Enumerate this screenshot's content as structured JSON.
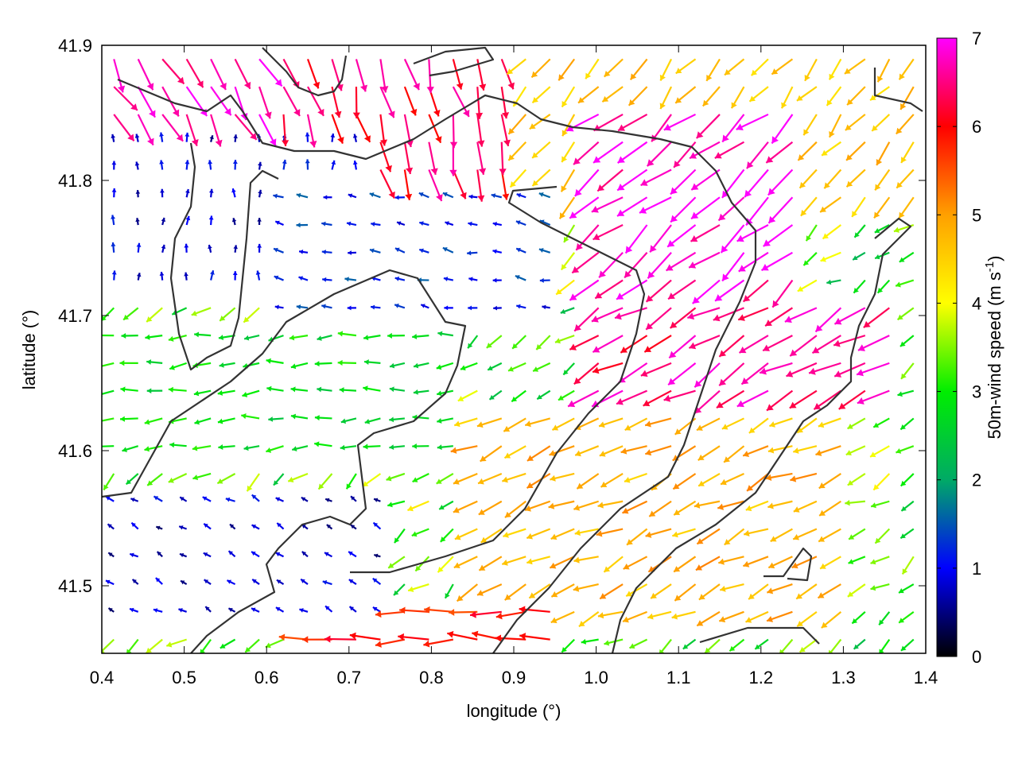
{
  "chart_data": {
    "type": "vector-field",
    "xlabel": "longitude (°)",
    "ylabel": "latitude (°)",
    "xlim": [
      0.4,
      1.4
    ],
    "ylim": [
      41.45,
      41.9
    ],
    "xticks": [
      {
        "v": 0.4,
        "label": "0.4"
      },
      {
        "v": 0.5,
        "label": "0.5"
      },
      {
        "v": 0.6,
        "label": "0.6"
      },
      {
        "v": 0.7,
        "label": "0.7"
      },
      {
        "v": 0.8,
        "label": "0.8"
      },
      {
        "v": 0.9,
        "label": "0.9"
      },
      {
        "v": 1.0,
        "label": "1.0"
      },
      {
        "v": 1.1,
        "label": "1.1"
      },
      {
        "v": 1.2,
        "label": "1.2"
      },
      {
        "v": 1.3,
        "label": "1.3"
      },
      {
        "v": 1.4,
        "label": "1.4"
      }
    ],
    "yticks": [
      {
        "v": 41.5,
        "label": "41.5"
      },
      {
        "v": 41.6,
        "label": "41.6"
      },
      {
        "v": 41.7,
        "label": "41.7"
      },
      {
        "v": 41.8,
        "label": "41.8"
      },
      {
        "v": 41.9,
        "label": "41.9"
      }
    ],
    "colorbar": {
      "label_main": "50m-wind speed (m s",
      "label_sup": "-1",
      "label_end": ")",
      "range": [
        0,
        7
      ],
      "ticks": [
        {
          "v": 0,
          "label": "0"
        },
        {
          "v": 1,
          "label": "1"
        },
        {
          "v": 2,
          "label": "2"
        },
        {
          "v": 3,
          "label": "3"
        },
        {
          "v": 4,
          "label": "4"
        },
        {
          "v": 5,
          "label": "5"
        },
        {
          "v": 6,
          "label": "6"
        },
        {
          "v": 7,
          "label": "7"
        }
      ],
      "palette": [
        "#000000",
        "#0000ff",
        "#00aa66",
        "#00ee00",
        "#ffff00",
        "#ffa000",
        "#ff0000",
        "#ff00ff"
      ]
    },
    "grid": false,
    "field": {
      "nx": 34,
      "ny": 22,
      "speed_regions": [
        {
          "name": "northwest magenta plume",
          "lon": [
            0.4,
            0.65
          ],
          "lat": [
            41.84,
            41.9
          ],
          "speed": 6.8,
          "dir_deg": 300
        },
        {
          "name": "north red channel",
          "lon": [
            0.62,
            0.9
          ],
          "lat": [
            41.8,
            41.9
          ],
          "speed": 6.3,
          "dir_deg": 285
        },
        {
          "name": "northeast orange",
          "lon": [
            0.9,
            1.4
          ],
          "lat": [
            41.78,
            41.9
          ],
          "speed": 4.6,
          "dir_deg": 230
        },
        {
          "name": "central-east magenta",
          "lon": [
            0.98,
            1.25
          ],
          "lat": [
            41.72,
            41.85
          ],
          "speed": 6.8,
          "dir_deg": 220
        },
        {
          "name": "east magenta band",
          "lon": [
            1.0,
            1.38
          ],
          "lat": [
            41.63,
            41.72
          ],
          "speed": 6.5,
          "dir_deg": 210
        },
        {
          "name": "southeast orange slope",
          "lon": [
            0.85,
            1.3
          ],
          "lat": [
            41.47,
            41.63
          ],
          "speed": 4.8,
          "dir_deg": 205
        },
        {
          "name": "south red jet",
          "lon": [
            0.63,
            0.95
          ],
          "lat": [
            41.45,
            41.5
          ],
          "speed": 5.8,
          "dir_deg": 180
        },
        {
          "name": "western calm basin",
          "lon": [
            0.4,
            0.72
          ],
          "lat": [
            41.72,
            41.83
          ],
          "speed": 0.9,
          "dir_deg": 90
        },
        {
          "name": "central calm basin",
          "lon": [
            0.6,
            0.95
          ],
          "lat": [
            41.7,
            41.8
          ],
          "speed": 1.2,
          "dir_deg": 170
        },
        {
          "name": "southwest calm",
          "lon": [
            0.4,
            0.75
          ],
          "lat": [
            41.47,
            41.58
          ],
          "speed": 0.8,
          "dir_deg": 150
        },
        {
          "name": "central green-yellow corridor",
          "lon": [
            0.4,
            0.85
          ],
          "lat": [
            41.6,
            41.7
          ],
          "speed": 2.8,
          "dir_deg": 185
        }
      ]
    }
  }
}
